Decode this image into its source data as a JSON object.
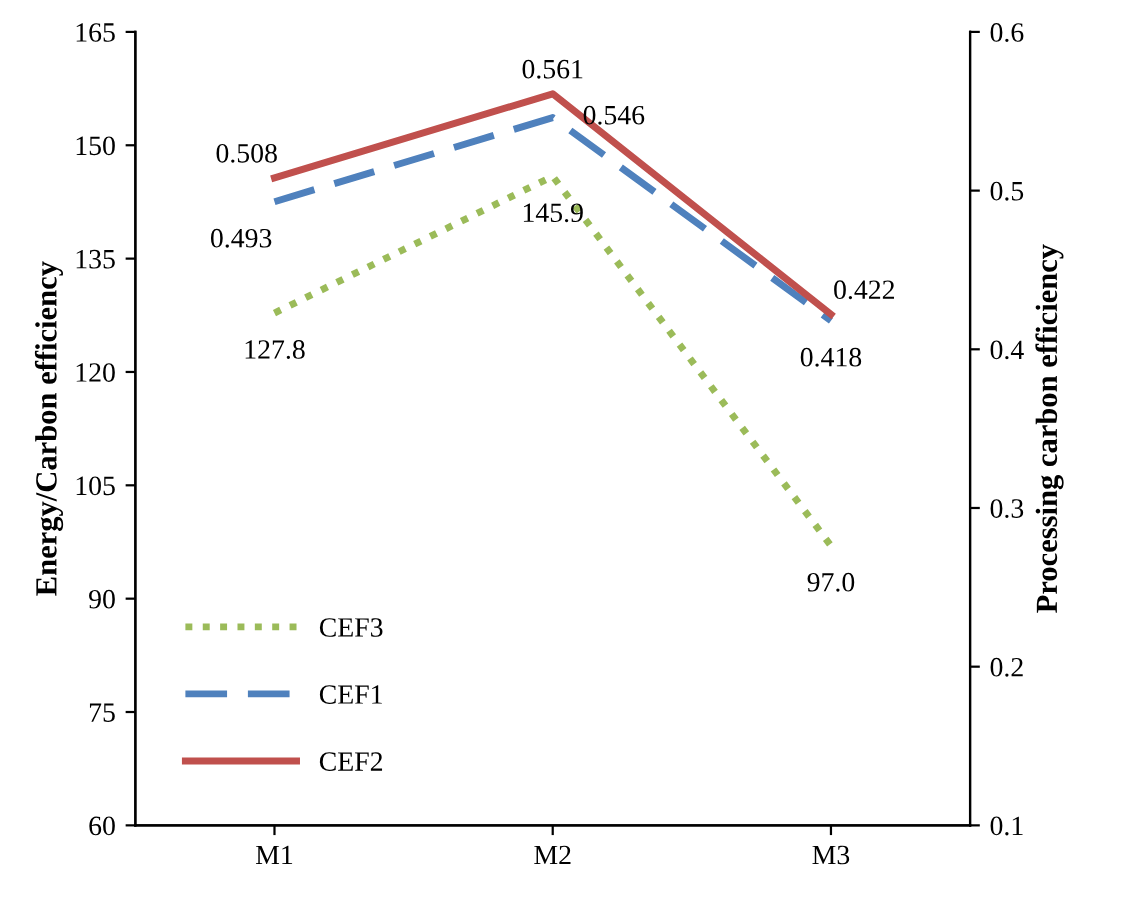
{
  "chart_data": {
    "type": "line",
    "categories": [
      "M1",
      "M2",
      "M3"
    ],
    "ylabel": "Energy/Carbon efficiency",
    "y2label": "Processing carbon efficiency",
    "ylim": [
      60,
      165
    ],
    "yticks": [
      60,
      75,
      90,
      105,
      120,
      135,
      150,
      165
    ],
    "y2lim": [
      0.1,
      0.6
    ],
    "y2ticks": [
      0.1,
      0.2,
      0.3,
      0.4,
      0.5,
      0.6
    ],
    "legend": "bottom left",
    "grid": false,
    "series": [
      {
        "name": "CEF3",
        "color": "#9bbb59",
        "values": [
          127.8,
          145.9,
          97.0
        ],
        "line_style": "dotted",
        "value_labels": [
          "127.8",
          "145.9",
          "97.0"
        ]
      },
      {
        "name": "CEF1",
        "color": "#4f81bd",
        "values": [
          0.493,
          0.546,
          0.418
        ],
        "axis": "y2",
        "line_style": "dashed",
        "value_labels": [
          "0.493",
          "0.546",
          "0.418"
        ]
      },
      {
        "name": "CEF2",
        "color": "#c0504d",
        "values": [
          0.508,
          0.561,
          0.422
        ],
        "axis": "y2",
        "line_style": "solid",
        "value_labels": [
          "0.508",
          "0.561",
          "0.422"
        ]
      }
    ]
  }
}
